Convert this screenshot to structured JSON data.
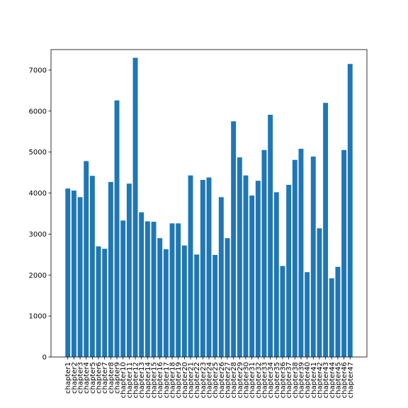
{
  "chart_data": {
    "type": "bar",
    "title": "",
    "xlabel": "",
    "ylabel": "",
    "ylim": [
      0,
      7500
    ],
    "yticks": [
      0,
      1000,
      2000,
      3000,
      4000,
      5000,
      6000,
      7000
    ],
    "grid": false,
    "bar_color": "#1f77b4",
    "categories": [
      "chapter1",
      "chapter2",
      "chapter3",
      "chapter4",
      "chapter5",
      "chapter6",
      "chapter7",
      "chapter8",
      "chapter9",
      "chapter10",
      "chapter11",
      "chapter12",
      "chapter13",
      "chapter14",
      "chapter15",
      "chapter16",
      "chapter17",
      "chapter18",
      "chapter19",
      "chapter20",
      "chapter21",
      "chapter22",
      "chapter23",
      "chapter24",
      "chapter25",
      "chapter26",
      "chapter27",
      "chapter28",
      "chapter29",
      "chapter30",
      "chapter31",
      "chapter32",
      "chapter33",
      "chapter34",
      "chapter35",
      "chapter36",
      "chapter37",
      "chapter38",
      "chapter39",
      "chapter40",
      "chapter41",
      "chapter42",
      "chapter43",
      "chapter44",
      "chapter45",
      "chapter46",
      "chapter47"
    ],
    "values": [
      4110,
      4060,
      3900,
      4780,
      4420,
      2700,
      2640,
      4270,
      6260,
      3330,
      4230,
      7300,
      3530,
      3310,
      3300,
      2900,
      2630,
      3260,
      3260,
      2720,
      4430,
      2500,
      4320,
      4380,
      2490,
      3900,
      2900,
      5750,
      4870,
      4430,
      3940,
      4300,
      5050,
      5910,
      4020,
      2220,
      4200,
      4810,
      5080,
      2070,
      4890,
      3140,
      6200,
      1920,
      2200,
      5050,
      7150
    ]
  }
}
